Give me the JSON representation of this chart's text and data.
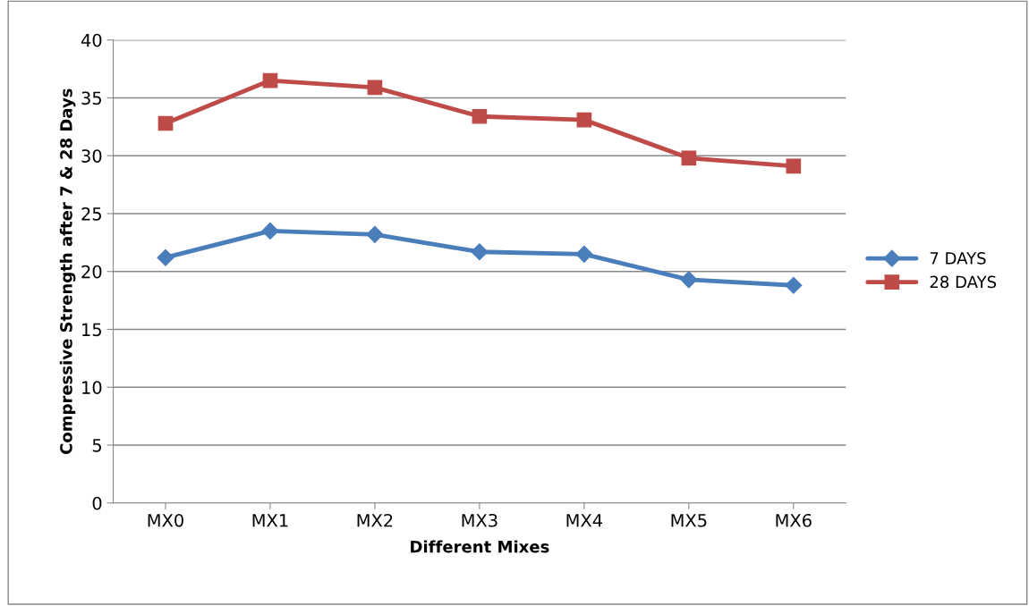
{
  "chart_data": {
    "type": "line",
    "xlabel": "Different Mixes",
    "ylabel": "Compressive Strength after 7 & 28 Days",
    "categories": [
      "MX0",
      "MX1",
      "MX2",
      "MX3",
      "MX4",
      "MX5",
      "MX6"
    ],
    "series": [
      {
        "name": "7 DAYS",
        "color": "#4a7ebb",
        "marker": "diamond",
        "values": [
          21.2,
          23.5,
          23.2,
          21.7,
          21.5,
          19.3,
          18.8
        ]
      },
      {
        "name": "28 DAYS",
        "color": "#be4b48",
        "marker": "square",
        "values": [
          32.8,
          36.5,
          35.9,
          33.4,
          33.1,
          29.8,
          29.1
        ]
      }
    ],
    "ylim": [
      0,
      40
    ],
    "yticks": [
      0,
      5,
      10,
      15,
      20,
      25,
      30,
      35,
      40
    ],
    "grid": "y",
    "legend": "right",
    "line_style": "solid"
  }
}
